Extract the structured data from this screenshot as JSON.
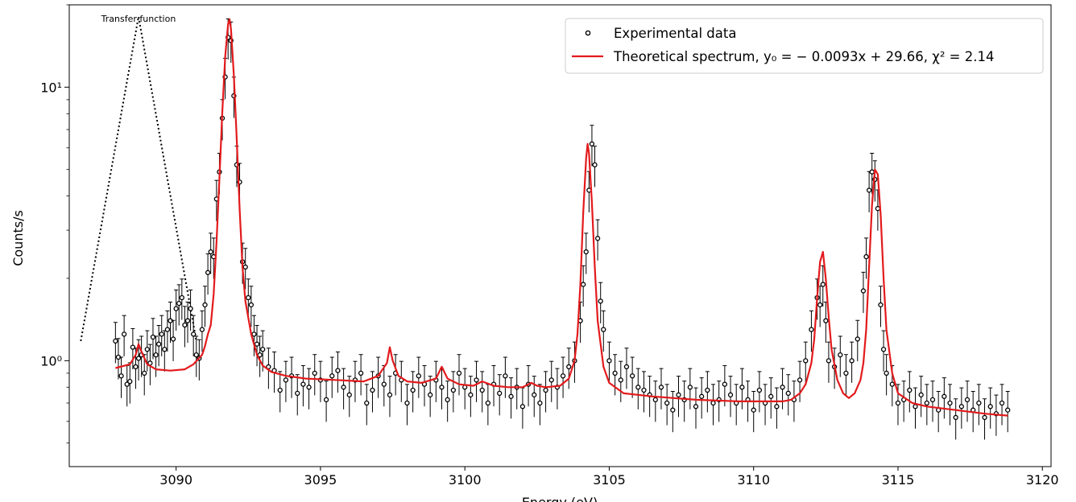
{
  "chart_data": {
    "type": "scatter",
    "xlabel": "Energy (eV)",
    "ylabel": "Counts/s",
    "xlim": [
      3086.3,
      3120.3
    ],
    "ylim": [
      0.41,
      20.0
    ],
    "yscale": "log",
    "x_ticks": [
      3090,
      3095,
      3100,
      3105,
      3110,
      3115,
      3120
    ],
    "x_tick_labels": [
      "3090",
      "3095",
      "3100",
      "3105",
      "3110",
      "3115",
      "3120"
    ],
    "y_ticks": [
      1,
      10
    ],
    "y_tick_labels": [
      "10⁰",
      "10¹"
    ],
    "grid": false,
    "legend_position": "top-right",
    "colors": {
      "data": "#000000",
      "model": "#e31a1c",
      "transfer": "#000000"
    },
    "annotation": "Transfer function",
    "transfer_function": {
      "x": [
        3086.7,
        3088.7,
        3090.7
      ],
      "y": [
        1.18,
        18.1,
        1.18
      ]
    },
    "series": [
      {
        "name": "Experimental data",
        "style": "points-with-errorbars",
        "relative_error": 0.17,
        "x": [
          3087.9,
          3088.0,
          3088.1,
          3088.2,
          3088.3,
          3088.4,
          3088.5,
          3088.6,
          3088.7,
          3088.8,
          3088.9,
          3089.0,
          3089.1,
          3089.2,
          3089.3,
          3089.4,
          3089.5,
          3089.6,
          3089.7,
          3089.8,
          3089.9,
          3090.0,
          3090.1,
          3090.2,
          3090.3,
          3090.4,
          3090.5,
          3090.6,
          3090.7,
          3090.8,
          3090.9,
          3091.0,
          3091.1,
          3091.2,
          3091.3,
          3091.4,
          3091.5,
          3091.6,
          3091.7,
          3091.8,
          3091.9,
          3092.0,
          3092.1,
          3092.2,
          3092.3,
          3092.4,
          3092.5,
          3092.6,
          3092.7,
          3092.8,
          3092.9,
          3093.0,
          3093.2,
          3093.4,
          3093.6,
          3093.8,
          3094.0,
          3094.2,
          3094.4,
          3094.6,
          3094.8,
          3095.0,
          3095.2,
          3095.4,
          3095.6,
          3095.8,
          3096.0,
          3096.2,
          3096.4,
          3096.6,
          3096.8,
          3097.0,
          3097.2,
          3097.4,
          3097.6,
          3097.8,
          3098.0,
          3098.2,
          3098.4,
          3098.6,
          3098.8,
          3099.0,
          3099.2,
          3099.4,
          3099.6,
          3099.8,
          3100.0,
          3100.2,
          3100.4,
          3100.6,
          3100.8,
          3101.0,
          3101.2,
          3101.4,
          3101.6,
          3101.8,
          3102.0,
          3102.2,
          3102.4,
          3102.6,
          3102.8,
          3103.0,
          3103.2,
          3103.4,
          3103.6,
          3103.8,
          3104.0,
          3104.1,
          3104.2,
          3104.3,
          3104.4,
          3104.5,
          3104.6,
          3104.7,
          3104.8,
          3105.0,
          3105.2,
          3105.4,
          3105.6,
          3105.8,
          3106.0,
          3106.2,
          3106.4,
          3106.6,
          3106.8,
          3107.0,
          3107.2,
          3107.4,
          3107.6,
          3107.8,
          3108.0,
          3108.2,
          3108.4,
          3108.6,
          3108.8,
          3109.0,
          3109.2,
          3109.4,
          3109.6,
          3109.8,
          3110.0,
          3110.2,
          3110.4,
          3110.6,
          3110.8,
          3111.0,
          3111.2,
          3111.4,
          3111.6,
          3111.8,
          3112.0,
          3112.2,
          3112.3,
          3112.4,
          3112.5,
          3112.6,
          3112.8,
          3113.0,
          3113.2,
          3113.4,
          3113.6,
          3113.8,
          3113.9,
          3114.0,
          3114.1,
          3114.2,
          3114.3,
          3114.4,
          3114.5,
          3114.6,
          3114.8,
          3115.0,
          3115.2,
          3115.4,
          3115.6,
          3115.8,
          3116.0,
          3116.2,
          3116.4,
          3116.6,
          3116.8,
          3117.0,
          3117.2,
          3117.4,
          3117.6,
          3117.8,
          3118.0,
          3118.2,
          3118.4,
          3118.6,
          3118.8
        ],
        "y": [
          1.18,
          1.03,
          0.88,
          1.25,
          0.82,
          0.84,
          1.12,
          0.95,
          1.02,
          1.05,
          0.9,
          1.1,
          0.98,
          1.22,
          1.05,
          1.15,
          1.25,
          1.1,
          1.3,
          1.4,
          1.2,
          1.55,
          1.62,
          1.7,
          1.35,
          1.4,
          1.55,
          1.25,
          1.05,
          1.02,
          1.3,
          1.6,
          2.1,
          2.5,
          2.4,
          3.9,
          4.9,
          7.7,
          10.9,
          15.2,
          14.8,
          9.3,
          5.2,
          4.5,
          2.3,
          2.2,
          1.7,
          1.6,
          1.25,
          1.15,
          1.05,
          1.1,
          0.95,
          0.92,
          0.78,
          0.85,
          0.88,
          0.76,
          0.82,
          0.8,
          0.9,
          0.85,
          0.72,
          0.88,
          0.92,
          0.8,
          0.75,
          0.85,
          0.9,
          0.7,
          0.78,
          0.88,
          0.82,
          0.75,
          0.9,
          0.85,
          0.7,
          0.78,
          0.88,
          0.82,
          0.75,
          0.85,
          0.8,
          0.72,
          0.78,
          0.9,
          0.8,
          0.75,
          0.85,
          0.78,
          0.7,
          0.82,
          0.76,
          0.88,
          0.74,
          0.8,
          0.68,
          0.82,
          0.75,
          0.7,
          0.78,
          0.85,
          0.8,
          0.88,
          0.95,
          1.0,
          1.4,
          1.9,
          2.5,
          4.2,
          6.2,
          5.2,
          2.8,
          1.65,
          1.3,
          1.0,
          0.9,
          0.85,
          0.95,
          0.88,
          0.8,
          0.78,
          0.75,
          0.72,
          0.8,
          0.7,
          0.66,
          0.75,
          0.72,
          0.8,
          0.68,
          0.74,
          0.78,
          0.7,
          0.72,
          0.82,
          0.75,
          0.7,
          0.8,
          0.72,
          0.66,
          0.78,
          0.7,
          0.74,
          0.68,
          0.8,
          0.76,
          0.72,
          0.85,
          1.0,
          1.3,
          1.7,
          1.6,
          1.9,
          1.4,
          1.0,
          0.95,
          1.05,
          0.9,
          1.0,
          1.2,
          1.8,
          2.4,
          4.2,
          4.9,
          4.6,
          3.6,
          1.6,
          1.1,
          0.9,
          0.82,
          0.7,
          0.72,
          0.78,
          0.68,
          0.75,
          0.7,
          0.72,
          0.66,
          0.74,
          0.7,
          0.62,
          0.68,
          0.72,
          0.66,
          0.7,
          0.62,
          0.68,
          0.64,
          0.7,
          0.66
        ]
      },
      {
        "name": "Theoretical spectrum, y₀ = − 0.0093x + 29.66, χ² = 2.14",
        "style": "line",
        "x": [
          3087.9,
          3088.4,
          3088.6,
          3088.7,
          3088.8,
          3089.0,
          3089.3,
          3089.8,
          3090.3,
          3090.6,
          3090.9,
          3091.0,
          3091.1,
          3091.2,
          3091.3,
          3091.4,
          3091.5,
          3091.6,
          3091.7,
          3091.8,
          3091.85,
          3091.9,
          3092.0,
          3092.1,
          3092.2,
          3092.3,
          3092.4,
          3092.6,
          3092.8,
          3093.0,
          3093.3,
          3093.8,
          3094.5,
          3095.5,
          3096.5,
          3097.0,
          3097.3,
          3097.4,
          3097.5,
          3097.7,
          3098.0,
          3098.5,
          3099.0,
          3099.2,
          3099.4,
          3099.8,
          3100.3,
          3100.6,
          3101.0,
          3101.5,
          3102.0,
          3102.3,
          3102.5,
          3102.8,
          3103.3,
          3103.6,
          3103.8,
          3103.9,
          3104.0,
          3104.1,
          3104.2,
          3104.25,
          3104.3,
          3104.4,
          3104.5,
          3104.6,
          3104.8,
          3105.0,
          3105.5,
          3106.5,
          3108.0,
          3109.5,
          3110.5,
          3111.0,
          3111.3,
          3111.6,
          3111.8,
          3112.0,
          3112.1,
          3112.2,
          3112.3,
          3112.4,
          3112.5,
          3112.6,
          3112.7,
          3112.9,
          3113.1,
          3113.3,
          3113.5,
          3113.7,
          3113.8,
          3113.9,
          3114.0,
          3114.1,
          3114.2,
          3114.3,
          3114.4,
          3114.5,
          3114.6,
          3114.8,
          3115.0,
          3115.5,
          3116.0,
          3117.0,
          3118.0,
          3118.8
        ],
        "y": [
          0.94,
          0.97,
          1.05,
          1.15,
          1.08,
          0.97,
          0.93,
          0.92,
          0.93,
          0.97,
          1.05,
          1.13,
          1.25,
          1.35,
          1.75,
          2.7,
          4.6,
          8.1,
          12.9,
          17.0,
          17.7,
          16.3,
          11.0,
          6.5,
          3.6,
          2.2,
          1.65,
          1.25,
          1.05,
          0.96,
          0.91,
          0.88,
          0.86,
          0.85,
          0.84,
          0.88,
          0.98,
          1.12,
          1.0,
          0.88,
          0.84,
          0.83,
          0.86,
          0.95,
          0.86,
          0.82,
          0.81,
          0.84,
          0.81,
          0.8,
          0.8,
          0.83,
          0.81,
          0.8,
          0.81,
          0.86,
          1.0,
          1.25,
          1.9,
          3.5,
          5.5,
          6.2,
          5.7,
          3.8,
          2.2,
          1.4,
          0.95,
          0.83,
          0.76,
          0.74,
          0.72,
          0.71,
          0.71,
          0.71,
          0.72,
          0.76,
          0.82,
          0.98,
          1.2,
          1.7,
          2.3,
          2.5,
          2.0,
          1.45,
          1.1,
          0.85,
          0.76,
          0.73,
          0.76,
          0.85,
          0.98,
          1.3,
          2.2,
          3.7,
          5.0,
          4.8,
          3.4,
          2.0,
          1.3,
          0.9,
          0.76,
          0.7,
          0.68,
          0.66,
          0.64,
          0.63
        ]
      }
    ]
  }
}
